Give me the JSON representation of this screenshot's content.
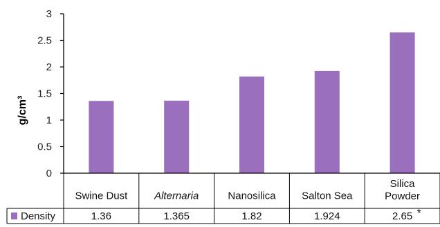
{
  "chart_data": {
    "type": "bar",
    "categories": [
      "Swine Dust",
      "Alternaria",
      "Nanosilica",
      "Salton Sea",
      "Silica\nPowder"
    ],
    "category_italic": [
      false,
      true,
      false,
      false,
      false
    ],
    "series": [
      {
        "name": "Density",
        "values": [
          1.36,
          1.365,
          1.82,
          1.924,
          2.65
        ],
        "value_labels": [
          "1.36",
          "1.365",
          "1.82",
          "1.924",
          "2.65"
        ],
        "color": "#9a6fbe"
      }
    ],
    "asterisk_note": {
      "index": 4,
      "text": "*"
    },
    "title": "",
    "xlabel": "",
    "ylabel": "g/cm³",
    "ylim": [
      0,
      3
    ],
    "yticks": [
      0,
      0.5,
      1,
      1.5,
      2,
      2.5,
      3
    ],
    "ytick_labels": [
      "0",
      "0.5",
      "1",
      "1.5",
      "2",
      "2.5",
      "3"
    ],
    "grid": false,
    "legend_placement": "data-table-left",
    "data_table": true
  }
}
